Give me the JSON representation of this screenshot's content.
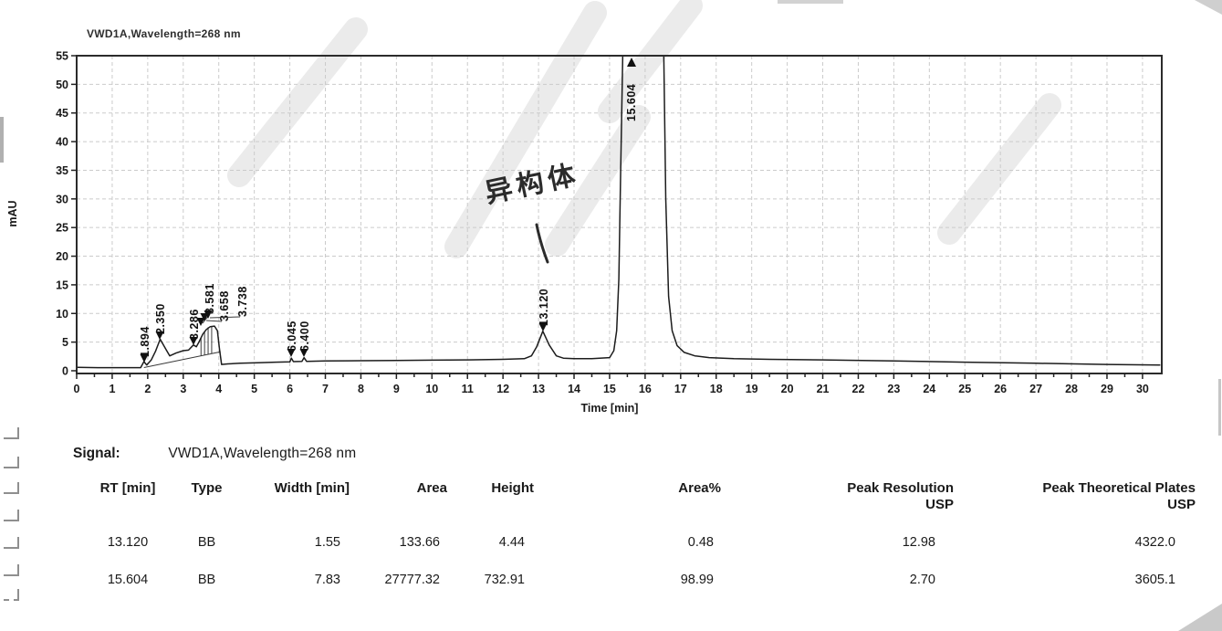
{
  "chart_data": {
    "type": "line",
    "title": "VWD1A,Wavelength=268 nm",
    "xlabel": "Time [min]",
    "ylabel": "mAU",
    "xlim": [
      0,
      30.5
    ],
    "ylim": [
      0,
      55
    ],
    "x_ticks": [
      0,
      1,
      2,
      3,
      4,
      5,
      6,
      7,
      8,
      9,
      10,
      11,
      12,
      13,
      14,
      15,
      16,
      17,
      18,
      19,
      20,
      21,
      22,
      23,
      24,
      25,
      26,
      27,
      28,
      29,
      30
    ],
    "y_ticks": [
      0,
      5,
      10,
      15,
      20,
      25,
      30,
      35,
      40,
      45,
      50,
      55
    ],
    "grid": true,
    "series": [
      {
        "name": "VWD1A,Wavelength=268 nm",
        "points": [
          [
            0,
            0.6
          ],
          [
            0.6,
            0.55
          ],
          [
            1.2,
            0.55
          ],
          [
            1.8,
            0.55
          ],
          [
            1.894,
            1.6
          ],
          [
            1.97,
            1.0
          ],
          [
            2.1,
            1.9
          ],
          [
            2.22,
            3.4
          ],
          [
            2.35,
            5.5
          ],
          [
            2.48,
            4.1
          ],
          [
            2.62,
            2.6
          ],
          [
            2.8,
            3.1
          ],
          [
            3.0,
            3.5
          ],
          [
            3.15,
            3.6
          ],
          [
            3.286,
            4.5
          ],
          [
            3.37,
            4.2
          ],
          [
            3.45,
            5.1
          ],
          [
            3.55,
            6.4
          ],
          [
            3.65,
            7.2
          ],
          [
            3.76,
            7.7
          ],
          [
            3.88,
            7.8
          ],
          [
            3.96,
            7.0
          ],
          [
            4.02,
            3.8
          ],
          [
            4.08,
            1.1
          ],
          [
            4.25,
            1.2
          ],
          [
            4.6,
            1.3
          ],
          [
            5.1,
            1.4
          ],
          [
            5.6,
            1.5
          ],
          [
            6.0,
            1.55
          ],
          [
            6.045,
            2.2
          ],
          [
            6.1,
            1.6
          ],
          [
            6.34,
            1.62
          ],
          [
            6.4,
            2.3
          ],
          [
            6.47,
            1.65
          ],
          [
            7.0,
            1.7
          ],
          [
            8.0,
            1.75
          ],
          [
            9.0,
            1.8
          ],
          [
            10.0,
            1.85
          ],
          [
            11.0,
            1.9
          ],
          [
            12.0,
            2.0
          ],
          [
            12.6,
            2.1
          ],
          [
            12.8,
            2.6
          ],
          [
            12.95,
            4.2
          ],
          [
            13.12,
            6.9
          ],
          [
            13.3,
            4.5
          ],
          [
            13.5,
            2.6
          ],
          [
            13.7,
            2.2
          ],
          [
            14.0,
            2.1
          ],
          [
            14.5,
            2.1
          ],
          [
            15.0,
            2.3
          ],
          [
            15.12,
            3.5
          ],
          [
            15.2,
            7.0
          ],
          [
            15.26,
            16.0
          ],
          [
            15.31,
            34.0
          ],
          [
            15.38,
            58.0
          ],
          [
            16.52,
            58.0
          ],
          [
            16.58,
            30.0
          ],
          [
            16.66,
            13.0
          ],
          [
            16.76,
            7.0
          ],
          [
            16.9,
            4.4
          ],
          [
            17.1,
            3.2
          ],
          [
            17.4,
            2.6
          ],
          [
            17.8,
            2.3
          ],
          [
            18.5,
            2.1
          ],
          [
            19.5,
            2.0
          ],
          [
            21.0,
            1.9
          ],
          [
            23.0,
            1.7
          ],
          [
            25.0,
            1.5
          ],
          [
            27.0,
            1.3
          ],
          [
            29.0,
            1.1
          ],
          [
            30.5,
            1.0
          ]
        ]
      }
    ],
    "peaks": [
      {
        "rt_label": "1.894",
        "rt": 1.894,
        "apex_mAU": 1.6,
        "offscale": false
      },
      {
        "rt_label": "2.350",
        "rt": 2.35,
        "apex_mAU": 5.5,
        "offscale": false
      },
      {
        "rt_label": "3.286",
        "rt": 3.286,
        "apex_mAU": 4.5,
        "offscale": false
      },
      {
        "rt_label": "3.581",
        "rt": 3.581,
        "apex_mAU": 6.4,
        "offscale": false
      },
      {
        "rt_label": "3.658",
        "rt": 3.658,
        "apex_mAU": 7.2,
        "offscale": false
      },
      {
        "rt_label": "3.738",
        "rt": 3.738,
        "apex_mAU": 7.7,
        "offscale": false
      },
      {
        "rt_label": "6.045",
        "rt": 6.045,
        "apex_mAU": 2.2,
        "offscale": false
      },
      {
        "rt_label": "6.400",
        "rt": 6.4,
        "apex_mAU": 2.3,
        "offscale": false
      },
      {
        "rt_label": "13.120",
        "rt": 13.12,
        "apex_mAU": 6.9,
        "offscale": false
      },
      {
        "rt_label": "15.604",
        "rt": 15.604,
        "apex_mAU": 55,
        "offscale": true
      }
    ],
    "annotation": {
      "text": "异构体",
      "handwritten": true,
      "points_to_rt": 13.12
    }
  },
  "signal": {
    "label": "Signal:",
    "value": "VWD1A,Wavelength=268 nm"
  },
  "results_table": {
    "columns": [
      {
        "l1": "RT [min]",
        "l2": ""
      },
      {
        "l1": "Type",
        "l2": ""
      },
      {
        "l1": "Width [min]",
        "l2": ""
      },
      {
        "l1": "Area",
        "l2": ""
      },
      {
        "l1": "Height",
        "l2": ""
      },
      {
        "l1": "Area%",
        "l2": ""
      },
      {
        "l1": "Peak Resolution",
        "l2": "USP"
      },
      {
        "l1": "Peak Theoretical Plates",
        "l2": "USP"
      }
    ],
    "rows": [
      [
        "13.120",
        "BB",
        "1.55",
        "133.66",
        "4.44",
        "0.48",
        "12.98",
        "4322.0"
      ],
      [
        "15.604",
        "BB",
        "7.83",
        "27777.32",
        "732.91",
        "98.99",
        "2.70",
        "3605.1"
      ]
    ]
  }
}
